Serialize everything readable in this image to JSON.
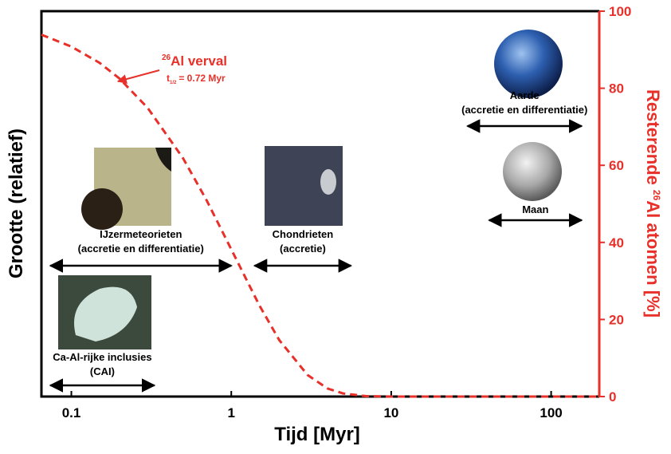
{
  "chart_data": {
    "type": "line",
    "xlabel": "Tijd [Myr]",
    "ylabel": "Grootte (relatief)",
    "y2label": {
      "pre": "Resterende",
      "sup": "26",
      "post": "Al atomen [%]"
    },
    "log_x": true,
    "xlim": [
      0.065,
      200
    ],
    "xticks": [
      0.1,
      1,
      10,
      100
    ],
    "y2lim": [
      0,
      100
    ],
    "y2ticks": [
      0,
      20,
      40,
      60,
      80,
      100
    ],
    "x": [
      0.065,
      0.1,
      0.15,
      0.2,
      0.3,
      0.5,
      0.7,
      1,
      1.5,
      2,
      3,
      4,
      5,
      7,
      10,
      20,
      200
    ],
    "series": [
      {
        "color": "#e8302a",
        "axis": "y2",
        "dashed": true,
        "values": [
          93.9,
          90.8,
          86.6,
          82.5,
          74.9,
          61.8,
          51.0,
          38.2,
          23.6,
          14.6,
          5.6,
          2.1,
          0.8,
          0.1,
          0,
          0,
          0
        ]
      }
    ],
    "annotation": {
      "sup": "26",
      "text": "Al verval",
      "halflife": {
        "t": "t",
        "sub": "1/2",
        "text": "= 0.72 Myr"
      }
    },
    "ranges": [
      {
        "lines": [
          "IJzermeteorieten",
          "(accretie en differentiatie)"
        ],
        "range": [
          0.074,
          1
        ]
      },
      {
        "lines": [
          "Chondrieten",
          "(accretie)"
        ],
        "range": [
          1.4,
          5.6
        ]
      },
      {
        "lines": [
          "Ca-Al-rijke inclusies",
          "(CAI)"
        ],
        "range": [
          0.074,
          0.33
        ]
      },
      {
        "lines": [
          "Aarde",
          "(accretie en differentiatie)"
        ],
        "range": [
          30,
          155
        ]
      },
      {
        "lines": [
          "Maan"
        ],
        "range": [
          41,
          155
        ]
      }
    ]
  }
}
